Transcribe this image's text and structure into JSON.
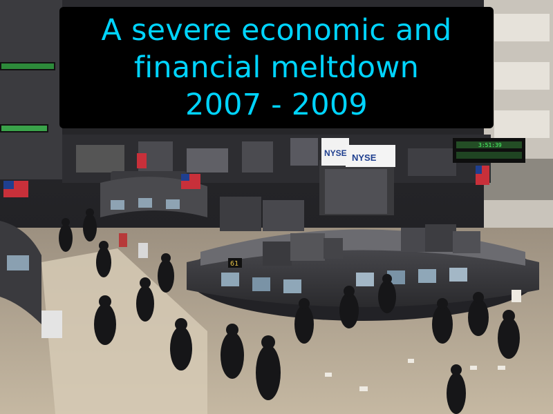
{
  "caption": {
    "line1": "A severe economic and",
    "line2": "financial meltdown",
    "line3": "2007 - 2009"
  },
  "signs": {
    "nyse_left": "NYSE",
    "nyse_right": "NYSE",
    "booth_number": "61"
  },
  "ticker": {
    "time": "3:51:39"
  },
  "colors": {
    "caption_text": "#00d4ff",
    "caption_bg": "#000000",
    "floor": "#b9ab94",
    "sign_blue": "#1f3f8f",
    "ticker_green": "#4cff6a"
  }
}
